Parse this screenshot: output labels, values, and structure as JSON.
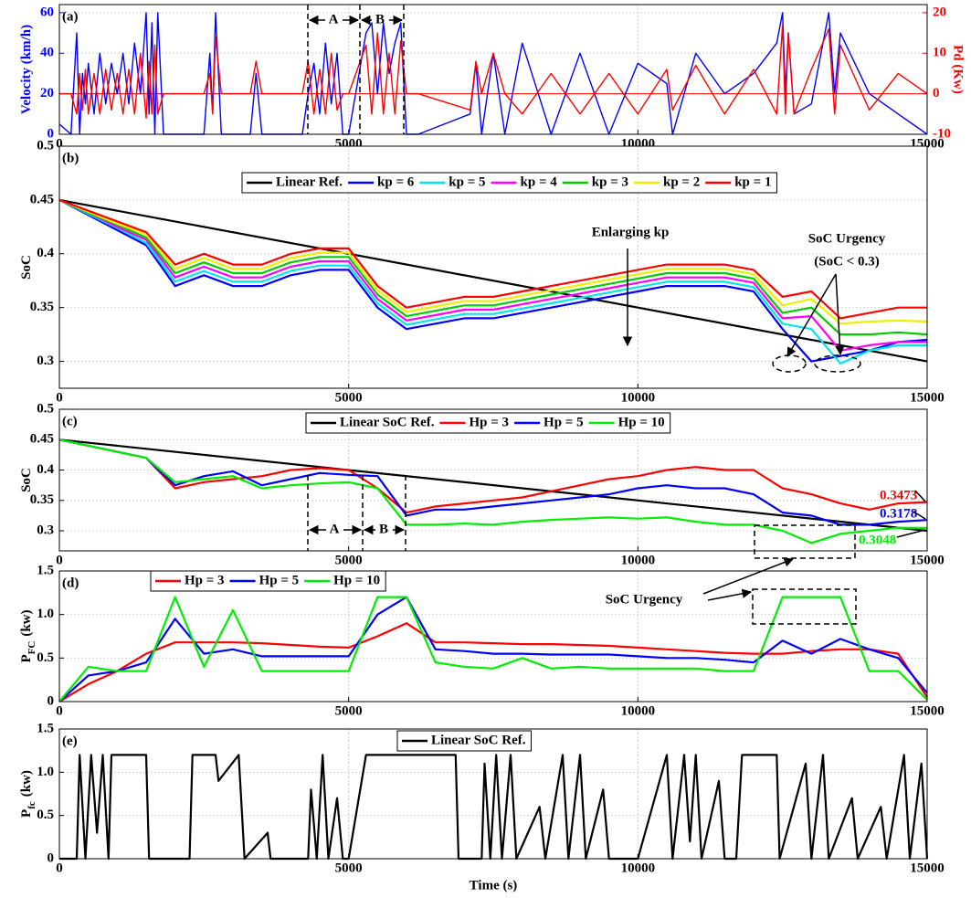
{
  "chart_data": [
    {
      "type": "line",
      "label": "(a)",
      "ylabel": "Velocity (km/h)",
      "y2label": "Pd (Kw)",
      "xlim": [
        0,
        15000
      ],
      "xticks": [
        0,
        5000,
        10000,
        15000
      ],
      "ylim": [
        0,
        64
      ],
      "yticks": [
        0,
        20,
        40,
        60
      ],
      "y2lim": [
        -10,
        22
      ],
      "y2ticks": [
        -10,
        0,
        10,
        20
      ],
      "grid": true,
      "annotations": [
        "A",
        "B"
      ],
      "x": [
        0,
        200,
        300,
        350,
        400,
        450,
        500,
        600,
        700,
        800,
        900,
        1000,
        1100,
        1200,
        1300,
        1400,
        1500,
        1550,
        1600,
        1650,
        1700,
        1800,
        1900,
        2500,
        2600,
        2650,
        2700,
        2800,
        3300,
        3400,
        3500,
        4200,
        4300,
        4400,
        4500,
        4600,
        4700,
        4800,
        4900,
        5000,
        5300,
        5400,
        5500,
        5600,
        5700,
        5800,
        5900,
        6000,
        6200,
        7100,
        7200,
        7300,
        7500,
        7700,
        8000,
        8500,
        9000,
        9500,
        10000,
        10500,
        10600,
        11000,
        11500,
        12000,
        12400,
        12500,
        12550,
        12600,
        12700,
        13000,
        13300,
        13400,
        13500,
        14000,
        14500,
        15000
      ],
      "series": [
        {
          "color": "#0000ff",
          "values": [
            5,
            0,
            50,
            0,
            30,
            15,
            35,
            10,
            40,
            15,
            35,
            20,
            40,
            15,
            45,
            20,
            60,
            10,
            55,
            0,
            60,
            0,
            0,
            0,
            40,
            10,
            60,
            0,
            0,
            30,
            0,
            0,
            20,
            35,
            10,
            45,
            15,
            40,
            0,
            0,
            50,
            55,
            20,
            55,
            30,
            45,
            55,
            0,
            0,
            10,
            35,
            0,
            40,
            0,
            45,
            0,
            40,
            0,
            35,
            25,
            0,
            40,
            20,
            30,
            45,
            60,
            20,
            50,
            10,
            15,
            60,
            20,
            50,
            20,
            10,
            0
          ]
        },
        {
          "color": "#ff0000",
          "axis": "y2",
          "values": [
            0,
            0,
            -5,
            5,
            -4,
            6,
            -5,
            5,
            -5,
            6,
            -4,
            5,
            -5,
            6,
            -5,
            10,
            -6,
            8,
            -5,
            12,
            -5,
            0,
            0,
            0,
            5,
            -5,
            14,
            0,
            0,
            8,
            0,
            0,
            8,
            -5,
            6,
            -5,
            10,
            -4,
            0,
            0,
            12,
            -5,
            15,
            -5,
            10,
            -5,
            13,
            0,
            0,
            -4,
            8,
            0,
            10,
            0,
            -5,
            5,
            -5,
            5,
            -5,
            6,
            -4,
            7,
            -5,
            6,
            -5,
            17,
            -5,
            15,
            -5,
            6,
            16,
            -5,
            12,
            -4,
            5,
            0
          ]
        }
      ]
    },
    {
      "type": "line",
      "label": "(b)",
      "ylabel": "SoC",
      "xlim": [
        0,
        15000
      ],
      "xticks": [
        0,
        5000,
        10000,
        15000
      ],
      "ylim": [
        0.275,
        0.5
      ],
      "yticks": [
        0.3,
        0.35,
        0.4,
        0.45,
        0.5
      ],
      "grid": true,
      "annotations": [
        "Enlarging kp",
        "SoC Urgency",
        "(SoC < 0.3)"
      ],
      "x": [
        0,
        500,
        1000,
        1500,
        2000,
        2500,
        3000,
        3500,
        4000,
        4500,
        5000,
        5500,
        6000,
        6500,
        7000,
        7500,
        8000,
        8500,
        9000,
        9500,
        10000,
        10500,
        11000,
        11500,
        12000,
        12500,
        13000,
        13500,
        14000,
        14500,
        15000
      ],
      "series": [
        {
          "name": "Linear Ref.",
          "color": "#000000",
          "x": [
            0,
            15000
          ],
          "values": [
            0.45,
            0.3
          ]
        },
        {
          "name": "kp = 6",
          "color": "#0000ff",
          "values": [
            0.45,
            0.436,
            0.422,
            0.408,
            0.37,
            0.38,
            0.37,
            0.37,
            0.38,
            0.385,
            0.385,
            0.35,
            0.33,
            0.335,
            0.34,
            0.34,
            0.345,
            0.35,
            0.355,
            0.36,
            0.365,
            0.37,
            0.37,
            0.37,
            0.365,
            0.33,
            0.3,
            0.305,
            0.31,
            0.318,
            0.32
          ]
        },
        {
          "name": "kp = 5",
          "color": "#00e5ee",
          "values": [
            0.45,
            0.437,
            0.424,
            0.41,
            0.374,
            0.384,
            0.374,
            0.374,
            0.384,
            0.389,
            0.389,
            0.354,
            0.334,
            0.339,
            0.344,
            0.344,
            0.349,
            0.354,
            0.359,
            0.364,
            0.369,
            0.374,
            0.374,
            0.374,
            0.369,
            0.335,
            0.33,
            0.298,
            0.31,
            0.315,
            0.315
          ]
        },
        {
          "name": "kp = 4",
          "color": "#ff00ff",
          "values": [
            0.45,
            0.438,
            0.425,
            0.413,
            0.378,
            0.388,
            0.378,
            0.378,
            0.388,
            0.393,
            0.393,
            0.358,
            0.338,
            0.343,
            0.348,
            0.348,
            0.353,
            0.358,
            0.363,
            0.368,
            0.373,
            0.378,
            0.378,
            0.378,
            0.373,
            0.34,
            0.342,
            0.31,
            0.315,
            0.318,
            0.318
          ]
        },
        {
          "name": "kp = 3",
          "color": "#00cc00",
          "values": [
            0.45,
            0.438,
            0.427,
            0.415,
            0.382,
            0.392,
            0.382,
            0.382,
            0.392,
            0.397,
            0.397,
            0.362,
            0.342,
            0.347,
            0.352,
            0.352,
            0.357,
            0.362,
            0.367,
            0.372,
            0.377,
            0.382,
            0.382,
            0.382,
            0.377,
            0.345,
            0.35,
            0.325,
            0.325,
            0.327,
            0.325
          ]
        },
        {
          "name": "kp = 2",
          "color": "#eeee00",
          "values": [
            0.45,
            0.439,
            0.428,
            0.418,
            0.386,
            0.396,
            0.386,
            0.386,
            0.396,
            0.401,
            0.401,
            0.366,
            0.346,
            0.351,
            0.356,
            0.356,
            0.361,
            0.366,
            0.371,
            0.376,
            0.381,
            0.386,
            0.386,
            0.386,
            0.381,
            0.352,
            0.358,
            0.335,
            0.337,
            0.338,
            0.337
          ]
        },
        {
          "name": "kp = 1",
          "color": "#ff0000",
          "values": [
            0.45,
            0.44,
            0.43,
            0.42,
            0.39,
            0.4,
            0.39,
            0.39,
            0.4,
            0.405,
            0.405,
            0.37,
            0.35,
            0.355,
            0.36,
            0.36,
            0.365,
            0.37,
            0.375,
            0.38,
            0.385,
            0.39,
            0.39,
            0.39,
            0.385,
            0.36,
            0.365,
            0.34,
            0.345,
            0.35,
            0.35
          ]
        }
      ]
    },
    {
      "type": "line",
      "label": "(c)",
      "ylabel": "SoC",
      "xlim": [
        0,
        15000
      ],
      "xticks": [
        0,
        5000,
        10000,
        15000
      ],
      "ylim": [
        0.267,
        0.5
      ],
      "yticks": [
        0.3,
        0.35,
        0.4,
        0.45,
        0.5
      ],
      "grid": true,
      "annotations": [
        "A",
        "B"
      ],
      "x": [
        0,
        500,
        1000,
        1500,
        2000,
        2500,
        3000,
        3500,
        4000,
        4500,
        5000,
        5500,
        6000,
        6500,
        7000,
        7500,
        8000,
        8500,
        9000,
        9500,
        10000,
        10500,
        11000,
        11500,
        12000,
        12500,
        13000,
        13500,
        14000,
        14500,
        15000
      ],
      "series": [
        {
          "name": "Linear SoC Ref.",
          "color": "#000000",
          "x": [
            0,
            15000
          ],
          "values": [
            0.45,
            0.3
          ]
        },
        {
          "name": "Hp = 3",
          "color": "#ff0000",
          "values": [
            0.45,
            0.44,
            0.43,
            0.42,
            0.37,
            0.38,
            0.385,
            0.39,
            0.4,
            0.403,
            0.4,
            0.37,
            0.33,
            0.34,
            0.345,
            0.35,
            0.355,
            0.365,
            0.375,
            0.385,
            0.39,
            0.4,
            0.405,
            0.4,
            0.4,
            0.37,
            0.36,
            0.345,
            0.335,
            0.345,
            0.3473
          ]
        },
        {
          "name": "Hp = 5",
          "color": "#0000ff",
          "values": [
            0.45,
            0.44,
            0.43,
            0.42,
            0.375,
            0.39,
            0.398,
            0.375,
            0.385,
            0.395,
            0.392,
            0.39,
            0.325,
            0.335,
            0.335,
            0.34,
            0.345,
            0.35,
            0.355,
            0.36,
            0.37,
            0.375,
            0.37,
            0.37,
            0.36,
            0.33,
            0.325,
            0.31,
            0.31,
            0.315,
            0.3178
          ]
        },
        {
          "name": "Hp = 10",
          "color": "#00ee00",
          "values": [
            0.45,
            0.44,
            0.43,
            0.42,
            0.38,
            0.385,
            0.39,
            0.37,
            0.375,
            0.378,
            0.38,
            0.37,
            0.31,
            0.31,
            0.312,
            0.31,
            0.315,
            0.318,
            0.32,
            0.322,
            0.32,
            0.322,
            0.315,
            0.31,
            0.31,
            0.3,
            0.28,
            0.295,
            0.3,
            0.305,
            0.3048
          ]
        }
      ]
    },
    {
      "type": "line",
      "label": "(d)",
      "ylabel": "P",
      "ylabel_sub": "FC",
      "ylabel_unit": "(kw)",
      "xlim": [
        0,
        15000
      ],
      "xticks": [
        0,
        5000,
        10000,
        15000
      ],
      "ylim": [
        0,
        1.5
      ],
      "yticks": [
        0,
        0.5,
        {
          "value": 1,
          "label": "1.0"
        },
        1.5
      ],
      "grid": true,
      "annotations": [
        "SoC Urgency"
      ],
      "x": [
        0,
        500,
        1000,
        1500,
        2000,
        2500,
        3000,
        3500,
        4000,
        4500,
        5000,
        5500,
        6000,
        6500,
        7000,
        7500,
        8000,
        8500,
        9000,
        9500,
        10000,
        10500,
        11000,
        11500,
        12000,
        12500,
        13000,
        13500,
        14000,
        14500,
        15000
      ],
      "series": [
        {
          "name": "Hp = 3",
          "color": "#ff0000",
          "values": [
            0,
            0.2,
            0.35,
            0.55,
            0.68,
            0.68,
            0.68,
            0.67,
            0.65,
            0.63,
            0.62,
            0.75,
            0.9,
            0.68,
            0.68,
            0.67,
            0.66,
            0.66,
            0.65,
            0.64,
            0.62,
            0.6,
            0.58,
            0.56,
            0.55,
            0.55,
            0.58,
            0.6,
            0.6,
            0.55,
            0.05
          ]
        },
        {
          "name": "Hp = 5",
          "color": "#0000ff",
          "values": [
            0,
            0.3,
            0.35,
            0.45,
            0.95,
            0.55,
            0.6,
            0.52,
            0.52,
            0.52,
            0.52,
            1.0,
            1.2,
            0.6,
            0.58,
            0.55,
            0.55,
            0.54,
            0.54,
            0.54,
            0.52,
            0.5,
            0.5,
            0.48,
            0.45,
            0.7,
            0.55,
            0.72,
            0.6,
            0.5,
            0.1
          ]
        },
        {
          "name": "Hp = 10",
          "color": "#00ee00",
          "values": [
            0,
            0.4,
            0.35,
            0.35,
            1.2,
            0.4,
            1.05,
            0.35,
            0.35,
            0.35,
            0.35,
            1.2,
            1.2,
            0.45,
            0.4,
            0.38,
            0.5,
            0.38,
            0.4,
            0.38,
            0.38,
            0.38,
            0.38,
            0.35,
            0.35,
            1.2,
            1.2,
            1.2,
            0.35,
            0.35,
            0.02
          ]
        }
      ]
    },
    {
      "type": "line",
      "label": "(e)",
      "ylabel": "P",
      "ylabel_sub": "fc",
      "ylabel_unit": "(kw)",
      "xlabel": "Time (s)",
      "xlim": [
        0,
        15000
      ],
      "xticks": [
        0,
        5000,
        10000,
        15000
      ],
      "ylim": [
        0,
        1.5
      ],
      "yticks": [
        0,
        0.5,
        {
          "value": 1,
          "label": "1.0"
        },
        1.5
      ],
      "grid": true,
      "x": [
        0,
        300,
        350,
        450,
        550,
        650,
        750,
        850,
        900,
        1500,
        1550,
        2250,
        2300,
        2700,
        2750,
        3100,
        3200,
        3600,
        3650,
        4300,
        4350,
        4450,
        4550,
        4650,
        4800,
        4900,
        5000,
        5300,
        6850,
        6900,
        7300,
        7350,
        7450,
        7550,
        7650,
        7800,
        7900,
        8300,
        8400,
        8700,
        8800,
        9000,
        9100,
        9400,
        9500,
        10000,
        10500,
        10600,
        10800,
        10900,
        11000,
        11100,
        11400,
        11500,
        11700,
        11800,
        12400,
        12450,
        12900,
        13000,
        13200,
        13300,
        13700,
        13800,
        14200,
        14300,
        14600,
        14700,
        14900,
        15000
      ],
      "series": [
        {
          "name": "Linear SoC Ref.",
          "color": "#000000",
          "values": [
            0,
            0,
            1.2,
            0,
            1.2,
            0.3,
            1.2,
            0,
            1.2,
            1.2,
            0,
            0,
            1.2,
            1.2,
            0.9,
            1.2,
            0,
            0.3,
            0,
            0,
            0.8,
            0,
            1.2,
            0,
            0.7,
            0,
            0,
            1.2,
            1.2,
            0,
            0,
            1.1,
            0,
            1.2,
            0,
            1.2,
            0,
            0.6,
            0,
            1.2,
            0,
            1.2,
            0,
            0.8,
            0,
            0,
            1.2,
            0,
            1.2,
            0.2,
            1.2,
            0,
            0.9,
            0,
            0,
            1.2,
            1.2,
            0,
            1.1,
            0,
            1.2,
            0,
            0.7,
            0,
            0.6,
            0,
            1.2,
            0,
            1.1,
            0
          ]
        }
      ]
    }
  ]
}
